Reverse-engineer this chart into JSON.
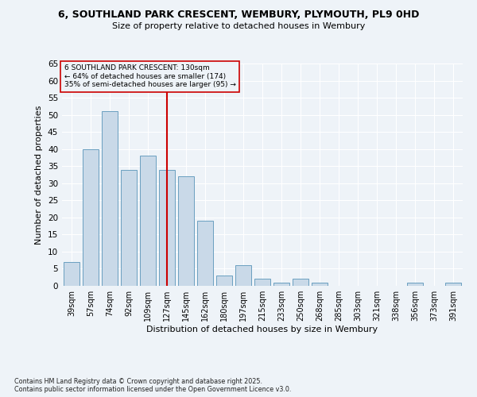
{
  "title1": "6, SOUTHLAND PARK CRESCENT, WEMBURY, PLYMOUTH, PL9 0HD",
  "title2": "Size of property relative to detached houses in Wembury",
  "xlabel": "Distribution of detached houses by size in Wembury",
  "ylabel": "Number of detached properties",
  "categories": [
    "39sqm",
    "57sqm",
    "74sqm",
    "92sqm",
    "109sqm",
    "127sqm",
    "145sqm",
    "162sqm",
    "180sqm",
    "197sqm",
    "215sqm",
    "233sqm",
    "250sqm",
    "268sqm",
    "285sqm",
    "303sqm",
    "321sqm",
    "338sqm",
    "356sqm",
    "373sqm",
    "391sqm"
  ],
  "values": [
    7,
    40,
    51,
    34,
    38,
    34,
    32,
    19,
    3,
    6,
    2,
    1,
    2,
    1,
    0,
    0,
    0,
    0,
    1,
    0,
    1
  ],
  "bar_color": "#c9d9e8",
  "bar_edge_color": "#6a9fc0",
  "highlight_index": 5,
  "highlight_line_color": "#cc0000",
  "ylim": [
    0,
    65
  ],
  "yticks": [
    0,
    5,
    10,
    15,
    20,
    25,
    30,
    35,
    40,
    45,
    50,
    55,
    60,
    65
  ],
  "annotation_line1": "6 SOUTHLAND PARK CRESCENT: 130sqm",
  "annotation_line2": "← 64% of detached houses are smaller (174)",
  "annotation_line3": "35% of semi-detached houses are larger (95) →",
  "footnote1": "Contains HM Land Registry data © Crown copyright and database right 2025.",
  "footnote2": "Contains public sector information licensed under the Open Government Licence v3.0.",
  "background_color": "#eef3f8",
  "grid_color": "#ffffff"
}
